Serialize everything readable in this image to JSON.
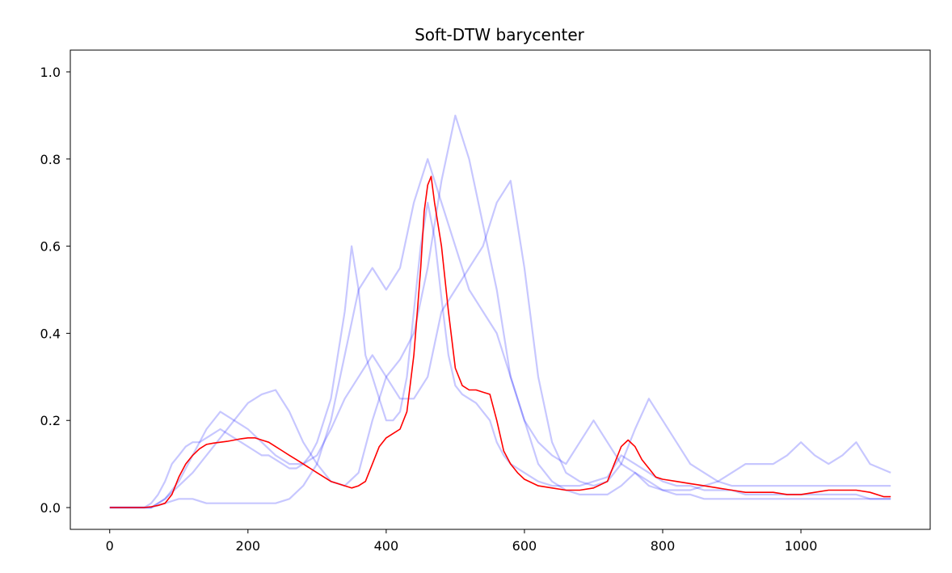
{
  "chart_data": {
    "type": "line",
    "title": "Soft-DTW barycenter",
    "xlabel": "",
    "ylabel": "",
    "xlim": [
      -57,
      1187
    ],
    "ylim": [
      -0.05,
      1.05
    ],
    "xticks": [
      0,
      200,
      400,
      600,
      800,
      1000
    ],
    "yticks": [
      0.0,
      0.2,
      0.4,
      0.6,
      0.8,
      1.0
    ],
    "xtick_labels": [
      "0",
      "200",
      "400",
      "600",
      "800",
      "1000"
    ],
    "ytick_labels": [
      "0.0",
      "0.2",
      "0.4",
      "0.6",
      "0.8",
      "1.0"
    ],
    "grid": false,
    "colors": {
      "samples": "#0000ff",
      "barycenter": "#ff0000"
    },
    "sample_alpha": 0.22,
    "samples": [
      {
        "x": [
          0,
          50,
          60,
          70,
          80,
          90,
          100,
          110,
          120,
          130,
          140,
          150,
          160,
          170,
          180,
          190,
          200,
          210,
          220,
          230,
          240,
          250,
          260,
          270,
          280,
          290,
          300,
          310,
          320,
          330,
          340,
          350,
          360,
          370,
          380,
          390,
          400,
          410,
          420,
          430,
          440,
          450,
          460,
          470,
          480,
          490,
          500,
          510,
          520,
          530,
          540,
          550,
          560,
          570,
          580,
          590,
          600,
          620,
          640,
          660,
          680,
          700,
          720,
          740,
          760,
          780,
          800,
          820,
          840,
          860,
          880,
          900,
          920,
          940,
          960,
          980,
          1000,
          1020,
          1040,
          1060,
          1080,
          1100,
          1130
        ],
        "y": [
          0,
          0,
          0.01,
          0.03,
          0.06,
          0.1,
          0.12,
          0.14,
          0.15,
          0.15,
          0.16,
          0.17,
          0.18,
          0.17,
          0.16,
          0.15,
          0.14,
          0.13,
          0.12,
          0.12,
          0.11,
          0.1,
          0.09,
          0.09,
          0.1,
          0.12,
          0.15,
          0.2,
          0.25,
          0.35,
          0.45,
          0.6,
          0.5,
          0.35,
          0.3,
          0.25,
          0.2,
          0.2,
          0.22,
          0.3,
          0.45,
          0.6,
          0.7,
          0.62,
          0.48,
          0.35,
          0.28,
          0.26,
          0.25,
          0.24,
          0.22,
          0.2,
          0.15,
          0.12,
          0.1,
          0.09,
          0.08,
          0.06,
          0.05,
          0.05,
          0.05,
          0.06,
          0.07,
          0.12,
          0.1,
          0.08,
          0.06,
          0.05,
          0.05,
          0.04,
          0.04,
          0.04,
          0.03,
          0.03,
          0.03,
          0.03,
          0.03,
          0.03,
          0.03,
          0.03,
          0.03,
          0.02,
          0.02
        ]
      },
      {
        "x": [
          0,
          60,
          80,
          100,
          120,
          140,
          160,
          180,
          200,
          220,
          240,
          260,
          280,
          300,
          320,
          340,
          360,
          380,
          400,
          420,
          440,
          460,
          480,
          500,
          520,
          540,
          560,
          580,
          600,
          620,
          640,
          660,
          680,
          700,
          720,
          740,
          760,
          780,
          800,
          820,
          840,
          860,
          880,
          900,
          920,
          940,
          960,
          980,
          1000,
          1020,
          1040,
          1060,
          1080,
          1100,
          1130
        ],
        "y": [
          0,
          0,
          0.02,
          0.05,
          0.08,
          0.12,
          0.16,
          0.2,
          0.24,
          0.26,
          0.27,
          0.22,
          0.15,
          0.1,
          0.06,
          0.05,
          0.08,
          0.2,
          0.3,
          0.34,
          0.4,
          0.55,
          0.75,
          0.9,
          0.8,
          0.65,
          0.5,
          0.3,
          0.2,
          0.1,
          0.06,
          0.04,
          0.03,
          0.03,
          0.03,
          0.05,
          0.08,
          0.06,
          0.04,
          0.03,
          0.03,
          0.02,
          0.02,
          0.02,
          0.02,
          0.02,
          0.02,
          0.02,
          0.02,
          0.02,
          0.02,
          0.02,
          0.02,
          0.02,
          0.02
        ]
      },
      {
        "x": [
          0,
          60,
          80,
          100,
          120,
          140,
          160,
          180,
          200,
          220,
          240,
          260,
          280,
          300,
          320,
          340,
          360,
          380,
          400,
          420,
          440,
          460,
          480,
          500,
          520,
          540,
          560,
          580,
          600,
          620,
          640,
          660,
          680,
          700,
          720,
          740,
          760,
          780,
          800,
          820,
          840,
          860,
          880,
          900,
          920,
          940,
          960,
          980,
          1000,
          1020,
          1040,
          1060,
          1080,
          1100,
          1130
        ],
        "y": [
          0,
          0,
          0.01,
          0.02,
          0.02,
          0.01,
          0.01,
          0.01,
          0.01,
          0.01,
          0.01,
          0.02,
          0.05,
          0.1,
          0.2,
          0.35,
          0.5,
          0.55,
          0.5,
          0.55,
          0.7,
          0.8,
          0.7,
          0.6,
          0.5,
          0.45,
          0.4,
          0.3,
          0.2,
          0.15,
          0.12,
          0.1,
          0.15,
          0.2,
          0.15,
          0.1,
          0.08,
          0.05,
          0.04,
          0.04,
          0.04,
          0.05,
          0.06,
          0.08,
          0.1,
          0.1,
          0.1,
          0.12,
          0.15,
          0.12,
          0.1,
          0.12,
          0.15,
          0.1,
          0.08
        ]
      },
      {
        "x": [
          0,
          60,
          80,
          100,
          120,
          140,
          160,
          180,
          200,
          220,
          240,
          260,
          280,
          300,
          320,
          340,
          360,
          380,
          400,
          420,
          440,
          460,
          480,
          500,
          520,
          540,
          560,
          580,
          600,
          620,
          640,
          660,
          680,
          700,
          720,
          740,
          760,
          780,
          800,
          820,
          840,
          860,
          880,
          900,
          920,
          940,
          960,
          980,
          1000,
          1020,
          1040,
          1060,
          1080,
          1100,
          1130
        ],
        "y": [
          0,
          0,
          0.02,
          0.06,
          0.12,
          0.18,
          0.22,
          0.2,
          0.18,
          0.15,
          0.12,
          0.1,
          0.1,
          0.12,
          0.18,
          0.25,
          0.3,
          0.35,
          0.3,
          0.25,
          0.25,
          0.3,
          0.45,
          0.5,
          0.55,
          0.6,
          0.7,
          0.75,
          0.55,
          0.3,
          0.15,
          0.08,
          0.06,
          0.05,
          0.06,
          0.1,
          0.18,
          0.25,
          0.2,
          0.15,
          0.1,
          0.08,
          0.06,
          0.05,
          0.05,
          0.05,
          0.05,
          0.05,
          0.05,
          0.05,
          0.05,
          0.05,
          0.05,
          0.05,
          0.05
        ]
      }
    ],
    "series": [
      {
        "x": [
          0,
          50,
          60,
          70,
          80,
          90,
          100,
          110,
          120,
          130,
          140,
          150,
          160,
          170,
          180,
          190,
          200,
          210,
          220,
          230,
          240,
          250,
          260,
          270,
          280,
          290,
          300,
          310,
          320,
          330,
          340,
          350,
          360,
          370,
          380,
          390,
          400,
          410,
          420,
          430,
          440,
          445,
          450,
          455,
          460,
          465,
          470,
          475,
          480,
          490,
          500,
          510,
          520,
          530,
          540,
          550,
          560,
          570,
          580,
          590,
          600,
          620,
          640,
          660,
          680,
          700,
          720,
          730,
          740,
          750,
          760,
          770,
          780,
          790,
          800,
          820,
          840,
          860,
          880,
          900,
          920,
          940,
          960,
          980,
          1000,
          1020,
          1040,
          1060,
          1080,
          1100,
          1120,
          1130
        ],
        "y": [
          0,
          0,
          0.002,
          0.005,
          0.01,
          0.03,
          0.07,
          0.1,
          0.12,
          0.135,
          0.145,
          0.148,
          0.15,
          0.152,
          0.155,
          0.158,
          0.16,
          0.16,
          0.155,
          0.15,
          0.14,
          0.13,
          0.12,
          0.11,
          0.1,
          0.09,
          0.08,
          0.07,
          0.06,
          0.055,
          0.05,
          0.045,
          0.05,
          0.06,
          0.1,
          0.14,
          0.16,
          0.17,
          0.18,
          0.22,
          0.35,
          0.45,
          0.55,
          0.68,
          0.74,
          0.76,
          0.7,
          0.65,
          0.6,
          0.45,
          0.32,
          0.28,
          0.27,
          0.27,
          0.265,
          0.26,
          0.2,
          0.13,
          0.1,
          0.08,
          0.065,
          0.05,
          0.045,
          0.04,
          0.04,
          0.045,
          0.06,
          0.1,
          0.14,
          0.155,
          0.14,
          0.11,
          0.09,
          0.07,
          0.065,
          0.06,
          0.055,
          0.05,
          0.045,
          0.04,
          0.035,
          0.035,
          0.035,
          0.03,
          0.03,
          0.035,
          0.04,
          0.04,
          0.04,
          0.035,
          0.025,
          0.025
        ]
      }
    ]
  }
}
